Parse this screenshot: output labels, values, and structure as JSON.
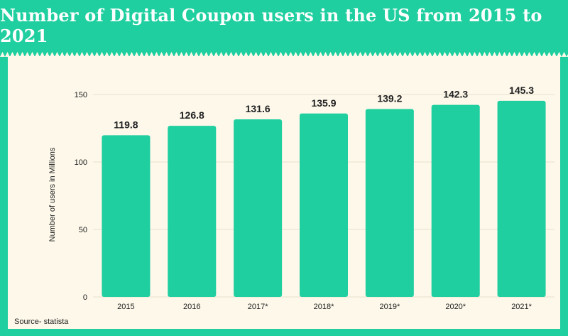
{
  "title": "Number of Digital Coupon users in the US from 2015 to 2021",
  "source": "Source- statista",
  "colors": {
    "background": "#1fcf9f",
    "panel": "#fdf8ea",
    "bar": "#1fcf9f",
    "text": "#222222"
  },
  "chart_data": {
    "type": "bar",
    "title": "Number of Digital Coupon users in the US from 2015 to 2021",
    "xlabel": "",
    "ylabel": "Number of users in Millions",
    "categories": [
      "2015",
      "2016",
      "2017*",
      "2018*",
      "2019*",
      "2020*",
      "2021*"
    ],
    "values": [
      119.8,
      126.8,
      131.6,
      135.9,
      139.2,
      142.3,
      145.3
    ],
    "data_labels": [
      "119.8",
      "126.8",
      "131.6",
      "135.9",
      "139.2",
      "142.3",
      "145.3"
    ],
    "yticks": [
      0,
      50,
      100,
      150
    ],
    "ytick_labels": [
      "0",
      "50",
      "100",
      "150"
    ],
    "ylim": [
      0,
      150
    ],
    "grid": true,
    "legend": "none"
  }
}
